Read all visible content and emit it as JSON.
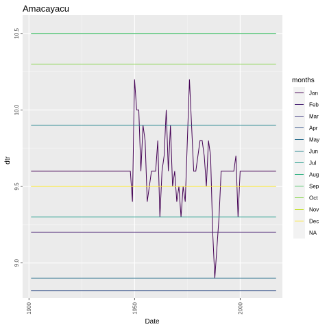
{
  "chart_data": {
    "type": "line",
    "title": "Amacayacu",
    "xlabel": "Date",
    "ylabel": "dtr",
    "xlim": [
      1897,
      2020
    ],
    "ylim": [
      8.77,
      10.62
    ],
    "x_ticks": [
      1900,
      1950,
      2000
    ],
    "x_tick_labels": [
      "1900",
      "1950",
      "2000"
    ],
    "y_ticks": [
      9.0,
      9.5,
      10.0,
      10.5
    ],
    "y_tick_labels": [
      "9.0",
      "9.5",
      "10.0",
      "10.5"
    ],
    "grid": true,
    "legend_position": "right",
    "legend_title": "months",
    "series": [
      {
        "name": "Jan",
        "color": "#440154",
        "points": [
          [
            1901,
            9.6
          ],
          [
            1948,
            9.6
          ],
          [
            1949,
            9.4
          ],
          [
            1950,
            10.2
          ],
          [
            1951,
            10.0
          ],
          [
            1952,
            10.0
          ],
          [
            1953,
            9.6
          ],
          [
            1954,
            9.9
          ],
          [
            1955,
            9.8
          ],
          [
            1956,
            9.4
          ],
          [
            1957,
            9.5
          ],
          [
            1958,
            9.6
          ],
          [
            1959,
            9.6
          ],
          [
            1960,
            9.6
          ],
          [
            1961,
            9.8
          ],
          [
            1962,
            9.3
          ],
          [
            1963,
            9.6
          ],
          [
            1964,
            9.7
          ],
          [
            1965,
            10.0
          ],
          [
            1966,
            9.6
          ],
          [
            1967,
            9.9
          ],
          [
            1968,
            9.5
          ],
          [
            1969,
            9.6
          ],
          [
            1970,
            9.4
          ],
          [
            1971,
            9.5
          ],
          [
            1972,
            9.3
          ],
          [
            1973,
            9.5
          ],
          [
            1974,
            9.4
          ],
          [
            1975,
            9.8
          ],
          [
            1976,
            10.2
          ],
          [
            1977,
            9.9
          ],
          [
            1978,
            9.6
          ],
          [
            1979,
            9.6
          ],
          [
            1980,
            9.7
          ],
          [
            1981,
            9.8
          ],
          [
            1982,
            9.8
          ],
          [
            1983,
            9.7
          ],
          [
            1984,
            9.5
          ],
          [
            1985,
            9.8
          ],
          [
            1986,
            9.7
          ],
          [
            1987,
            9.2
          ],
          [
            1988,
            8.9
          ],
          [
            1989,
            9.1
          ],
          [
            1990,
            9.3
          ],
          [
            1991,
            9.6
          ],
          [
            1992,
            9.6
          ],
          [
            1993,
            9.6
          ],
          [
            1994,
            9.6
          ],
          [
            1995,
            9.6
          ],
          [
            1996,
            9.6
          ],
          [
            1997,
            9.6
          ],
          [
            1998,
            9.7
          ],
          [
            1999,
            9.3
          ],
          [
            2000,
            9.6
          ],
          [
            2017,
            9.6
          ]
        ]
      },
      {
        "name": "Feb",
        "color": "#482173",
        "points": [
          [
            1901,
            9.2
          ],
          [
            2017,
            9.2
          ]
        ]
      },
      {
        "name": "Mar",
        "color": "#433E85",
        "points": [
          [
            1901,
            8.82
          ],
          [
            2017,
            8.82
          ]
        ]
      },
      {
        "name": "Apr",
        "color": "#38588C",
        "points": [
          [
            1901,
            8.82
          ],
          [
            2017,
            8.82
          ]
        ]
      },
      {
        "name": "May",
        "color": "#2D708E",
        "points": [
          [
            1901,
            8.9
          ],
          [
            2017,
            8.9
          ]
        ]
      },
      {
        "name": "Jun",
        "color": "#25858E",
        "points": [
          [
            1901,
            9.9
          ],
          [
            2017,
            9.9
          ]
        ]
      },
      {
        "name": "Jul",
        "color": "#1E9B8A",
        "points": [
          [
            1901,
            9.3
          ],
          [
            2017,
            9.3
          ]
        ]
      },
      {
        "name": "Aug",
        "color": "#2BB07F",
        "points": [
          [
            1901,
            10.5
          ],
          [
            2017,
            10.5
          ]
        ]
      },
      {
        "name": "Sep",
        "color": "#51C56A",
        "points": [
          [
            1901,
            10.5
          ],
          [
            2017,
            10.5
          ]
        ]
      },
      {
        "name": "Oct",
        "color": "#85D54A",
        "points": [
          [
            1901,
            10.3
          ],
          [
            2017,
            10.3
          ]
        ]
      },
      {
        "name": "Nov",
        "color": "#C2DF23",
        "points": [
          [
            1901,
            9.5
          ],
          [
            2017,
            9.5
          ]
        ]
      },
      {
        "name": "Dec",
        "color": "#FDE725",
        "points": [
          [
            1901,
            9.5
          ],
          [
            2017,
            9.5
          ]
        ]
      },
      {
        "name": "NA",
        "color": "#7F7F7F",
        "points": []
      }
    ]
  }
}
